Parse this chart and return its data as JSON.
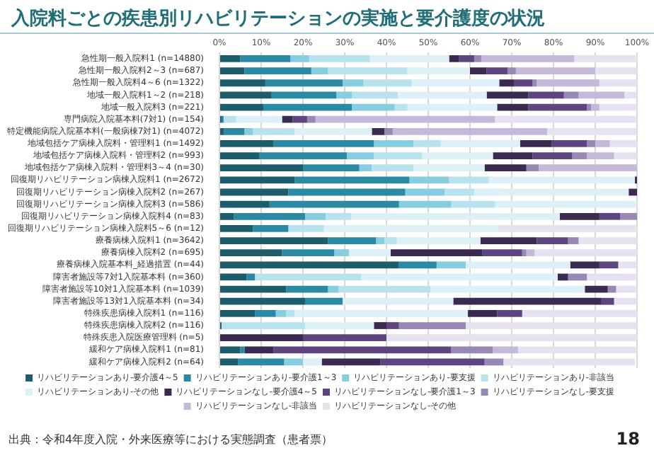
{
  "chart_data": {
    "type": "bar",
    "orientation": "horizontal",
    "stacked": true,
    "title": "入院料ごとの疾患別リハビリテーションの実施と要介護度の状況",
    "categories": [
      "急性期一般入院料1 (n=14880)",
      "急性期一般入院料2～3 (n=687)",
      "急性期一般入院料4～6 (n=1322)",
      "地域一般入院料1～2 (n=218)",
      "地域一般入院料3 (n=221)",
      "専門病院入院基本料(7対1) (n=154)",
      "特定機能病院入院基本料(一般病棟7対1) (n=4072)",
      "地域包括ケア病棟入院料・管理料1 (n=1492)",
      "地域包括ケア病棟入院料・管理料2 (n=993)",
      "地域包括ケア病棟入院料・管理料3～4 (n=30)",
      "回復期リハビリテーション病棟入院料1 (n=2672)",
      "回復期リハビリテーション病棟入院料2 (n=267)",
      "回復期リハビリテーション病棟入院料3 (n=586)",
      "回復期リハビリテーション病棟入院料4 (n=83)",
      "回復期リハビリテーション病棟入院料5～6 (n=12)",
      "療養病棟入院料1 (n=3642)",
      "療養病棟入院料2 (n=695)",
      "療養病棟入院基本料_経過措置 (n=44)",
      "障害者施設等7対1入院基本料 (n=360)",
      "障害者施設等10対1入院基本料 (n=1039)",
      "障害者施設等13対1入院基本料 (n=34)",
      "特殊疾患病棟入院料1 (n=116)",
      "特殊疾患病棟入院料2 (n=116)",
      "特殊疾患入院医療管理料 (n=5)",
      "緩和ケア病棟入院料1 (n=81)",
      "緩和ケア病棟入院料2 (n=64)"
    ],
    "series": [
      {
        "name": "リハビリテーションあり-要介護4～5",
        "color": "#1d5c6b",
        "values": [
          5,
          6,
          11,
          12.5,
          10.5,
          0.5,
          1,
          13,
          9.5,
          20,
          18,
          16.5,
          12,
          3.5,
          8,
          26,
          15,
          43,
          6.5,
          16,
          20.5,
          8.5,
          0.5,
          0,
          5,
          4.5
        ]
      },
      {
        "name": "リハビリテーションあり-要介護1～3",
        "color": "#2b8aa3",
        "values": [
          12,
          16,
          18.5,
          15.5,
          21.2,
          0.5,
          5,
          24,
          21,
          13.5,
          27.5,
          28,
          31,
          17,
          8.5,
          11.5,
          12.5,
          9,
          2,
          10,
          9,
          5,
          0,
          0,
          1,
          11
        ]
      },
      {
        "name": "リハビリテーションあり-要支援",
        "color": "#86cde0",
        "values": [
          4.5,
          4,
          5,
          3.7,
          10.3,
          0,
          2,
          9.5,
          6.5,
          3,
          9.5,
          9.5,
          12.5,
          5,
          0,
          2,
          3.5,
          7,
          0,
          2.5,
          0,
          2.5,
          0,
          0,
          0,
          4.5
        ]
      },
      {
        "name": "リハビリテーションあり-非該当",
        "color": "#b8e2ee",
        "values": [
          14.5,
          19,
          11.5,
          11,
          3,
          3,
          10,
          6.5,
          11.5,
          10,
          9.5,
          7,
          10.5,
          6,
          8.5,
          3,
          0,
          0,
          25.5,
          22,
          0,
          2,
          20,
          0,
          0,
          0
        ]
      },
      {
        "name": "リハビリテーションあり-その他",
        "color": "#dcf0f6",
        "values": [
          19,
          15,
          21,
          21.3,
          21.5,
          11,
          18.5,
          19,
          17,
          17,
          35,
          37,
          34,
          50,
          41.5,
          20,
          10,
          25,
          47,
          37,
          26.5,
          41.5,
          16.5,
          0,
          0,
          4.5
        ]
      },
      {
        "name": "リハビリテーションなし-要介護4～5",
        "color": "#3a2a4f",
        "values": [
          2.3,
          4,
          3.5,
          10,
          7.5,
          2.5,
          3,
          7.5,
          9.5,
          10,
          0.5,
          2,
          0,
          9.5,
          0,
          13.5,
          22,
          7,
          2.5,
          5.5,
          35.5,
          7,
          3,
          20,
          7,
          14
        ]
      },
      {
        "name": "リハビリテーションなし-要介護1～3",
        "color": "#5d4580",
        "values": [
          3.7,
          5,
          4.5,
          8.5,
          14,
          3.5,
          0,
          8.5,
          9.5,
          0,
          0,
          0,
          0,
          5,
          0,
          7.5,
          9.5,
          4.5,
          0,
          0,
          3,
          6,
          3,
          20,
          42.5,
          25
        ]
      },
      {
        "name": "リハビリテーションなし-要支援",
        "color": "#9888b5",
        "values": [
          1.7,
          2,
          1,
          3.5,
          1,
          2,
          2,
          2,
          3.5,
          3,
          0,
          0,
          0,
          4,
          0,
          2.5,
          1,
          0,
          4.5,
          2,
          0,
          0,
          16,
          0,
          10,
          4.5
        ]
      },
      {
        "name": "リハビリテーションなし-非該当",
        "color": "#c4b9d9",
        "values": [
          22.3,
          19,
          15,
          11,
          2,
          43,
          37,
          3.5,
          6.5,
          23.5,
          0,
          0,
          0,
          0,
          0,
          0,
          2,
          0,
          0,
          0,
          0,
          0,
          0,
          0,
          6,
          0
        ]
      },
      {
        "name": "リハビリテーションなし-その他",
        "color": "#e8e2f0",
        "values": [
          15,
          10,
          9,
          3,
          9,
          34,
          21.5,
          6.5,
          5.5,
          0,
          0,
          0,
          0,
          0,
          33.5,
          14,
          24.5,
          4.5,
          12,
          5,
          5.5,
          27.5,
          41,
          60,
          28.5,
          31.5
        ]
      }
    ],
    "xlim": [
      0,
      100
    ],
    "xticks": [
      {
        "value": 0,
        "label": "0%"
      },
      {
        "value": 10,
        "label": "10%"
      },
      {
        "value": 20,
        "label": "20%"
      },
      {
        "value": 30,
        "label": "30%"
      },
      {
        "value": 40,
        "label": "40%"
      },
      {
        "value": 50,
        "label": "50%"
      },
      {
        "value": 60,
        "label": "60%"
      },
      {
        "value": 70,
        "label": "70%"
      },
      {
        "value": 80,
        "label": "80%"
      },
      {
        "value": 90,
        "label": "90%"
      },
      {
        "value": 100,
        "label": "100%"
      }
    ],
    "grid": "x",
    "legend": "bottom",
    "annotations": [
      "出典：令和4年度入院・外来医療等における実態調査（患者票）",
      "18"
    ]
  }
}
